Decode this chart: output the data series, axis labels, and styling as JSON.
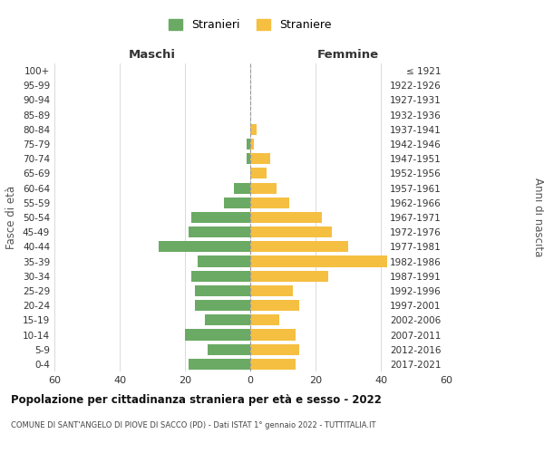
{
  "age_groups": [
    "0-4",
    "5-9",
    "10-14",
    "15-19",
    "20-24",
    "25-29",
    "30-34",
    "35-39",
    "40-44",
    "45-49",
    "50-54",
    "55-59",
    "60-64",
    "65-69",
    "70-74",
    "75-79",
    "80-84",
    "85-89",
    "90-94",
    "95-99",
    "100+"
  ],
  "birth_years": [
    "2017-2021",
    "2012-2016",
    "2007-2011",
    "2002-2006",
    "1997-2001",
    "1992-1996",
    "1987-1991",
    "1982-1986",
    "1977-1981",
    "1972-1976",
    "1967-1971",
    "1962-1966",
    "1957-1961",
    "1952-1956",
    "1947-1951",
    "1942-1946",
    "1937-1941",
    "1932-1936",
    "1927-1931",
    "1922-1926",
    "≤ 1921"
  ],
  "males": [
    19,
    13,
    20,
    14,
    17,
    17,
    18,
    16,
    28,
    19,
    18,
    8,
    5,
    0,
    1,
    1,
    0,
    0,
    0,
    0,
    0
  ],
  "females": [
    14,
    15,
    14,
    9,
    15,
    13,
    24,
    42,
    30,
    25,
    22,
    12,
    8,
    5,
    6,
    1,
    2,
    0,
    0,
    0,
    0
  ],
  "male_color": "#6aaa64",
  "female_color": "#f5bf42",
  "title": "Popolazione per cittadinanza straniera per età e sesso - 2022",
  "subtitle": "COMUNE DI SANT'ANGELO DI PIOVE DI SACCO (PD) - Dati ISTAT 1° gennaio 2022 - TUTTITALIA.IT",
  "xlabel_left": "Maschi",
  "xlabel_right": "Femmine",
  "ylabel_left": "Fasce di età",
  "ylabel_right": "Anni di nascita",
  "legend_male": "Stranieri",
  "legend_female": "Straniere",
  "xlim": 60,
  "background_color": "#ffffff",
  "grid_color": "#cccccc"
}
